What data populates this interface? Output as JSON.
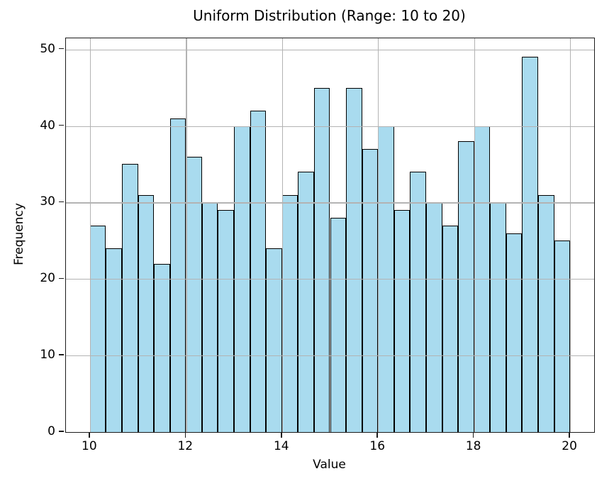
{
  "chart_data": {
    "type": "bar",
    "subtype": "histogram",
    "title": "Uniform Distribution (Range: 10 to 20)",
    "xlabel": "Value",
    "ylabel": "Frequency",
    "bin_start": 10,
    "bin_end": 20,
    "bin_count": 30,
    "bin_width": 0.3333333333,
    "frequencies": [
      27,
      24,
      35,
      31,
      22,
      41,
      36,
      30,
      29,
      40,
      42,
      24,
      31,
      34,
      45,
      28,
      45,
      37,
      40,
      29,
      34,
      30,
      27,
      38,
      40,
      30,
      26,
      49,
      31,
      25
    ],
    "total_samples": 1000,
    "xlim": [
      9.5,
      20.5
    ],
    "ylim": [
      0,
      51.45
    ],
    "x_ticks": [
      10,
      12,
      14,
      16,
      18,
      20
    ],
    "y_ticks": [
      0,
      10,
      20,
      30,
      40,
      50
    ],
    "grid": true,
    "legend": "none",
    "colors": {
      "bar_fill": "#a9dbef",
      "bar_edge": "#000000",
      "grid_color": "#b3b3b3",
      "spine_color": "#1c1c1c",
      "background": "#ffffff"
    }
  }
}
